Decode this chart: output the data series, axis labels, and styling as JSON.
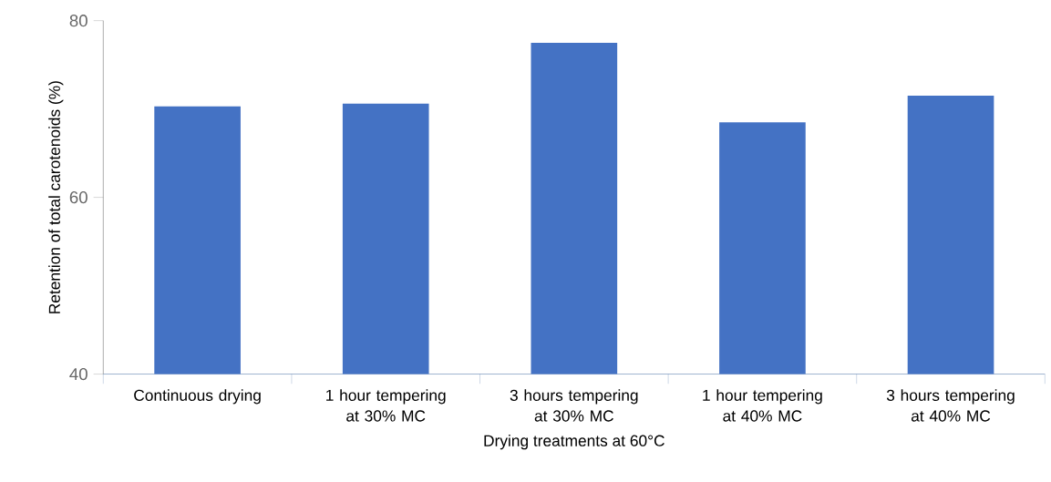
{
  "chart_data": {
    "type": "bar",
    "xlabel": "Drying treatments at 60°C",
    "ylabel": "Retention of total carotenoids (%)",
    "categories": [
      "Continuous drying",
      "1 hour tempering at 30% MC",
      "3 hours tempering at 30% MC",
      "1 hour tempering at 40% MC",
      "3 hours tempering at 40% MC"
    ],
    "values": [
      70.3,
      70.6,
      77.5,
      68.5,
      71.5
    ],
    "color": "#4472c4",
    "ylim": [
      40,
      80
    ],
    "yticks": [
      40,
      60,
      80
    ],
    "grid": false
  }
}
